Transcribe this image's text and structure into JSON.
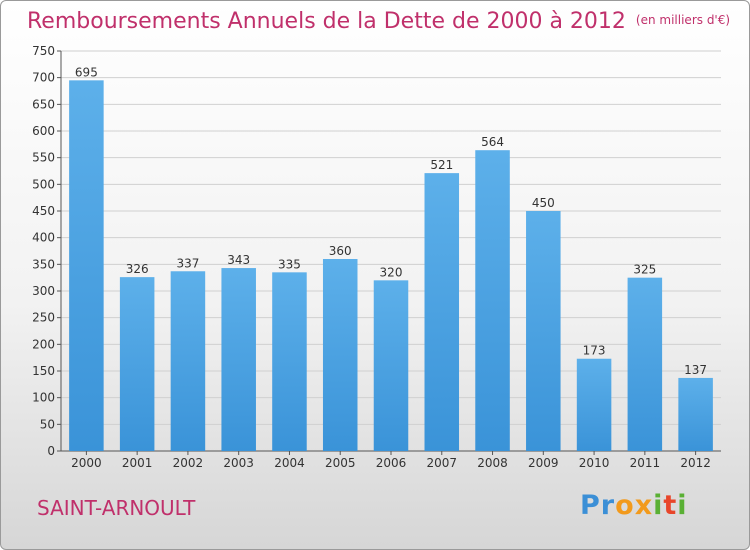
{
  "header": {
    "title": "Remboursements Annuels de la Dette de 2000 à 2012",
    "units": "(en milliers d'€)"
  },
  "footer": {
    "city": "SAINT-ARNOULT",
    "logo": {
      "letters": [
        "P",
        "r",
        "o",
        "x",
        "i",
        "t",
        "i"
      ],
      "colors": [
        "#3b8fd6",
        "#3b8fd6",
        "#f29a1c",
        "#f29a1c",
        "#5ab034",
        "#e8462a",
        "#5ab034"
      ]
    }
  },
  "colors": {
    "bar": "#3a93d8",
    "bar_light": "#5db0ea",
    "grid": "#d0d0d0",
    "accent": "#c0306b"
  },
  "chart_data": {
    "type": "bar",
    "categories": [
      "2000",
      "2001",
      "2002",
      "2003",
      "2004",
      "2005",
      "2006",
      "2007",
      "2008",
      "2009",
      "2010",
      "2011",
      "2012"
    ],
    "values": [
      695,
      326,
      337,
      343,
      335,
      360,
      320,
      521,
      564,
      450,
      173,
      325,
      137
    ],
    "ylim": [
      0,
      750
    ],
    "yticks": [
      0,
      50,
      100,
      150,
      200,
      250,
      300,
      350,
      400,
      450,
      500,
      550,
      600,
      650,
      700,
      750
    ],
    "grid": true
  }
}
